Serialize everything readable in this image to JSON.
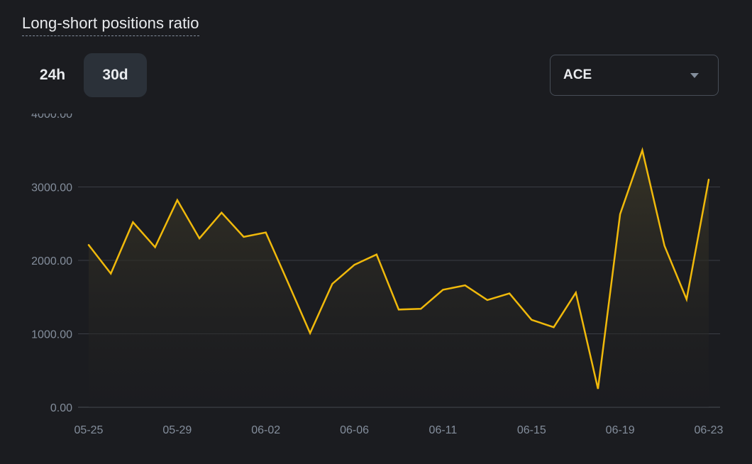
{
  "header": {
    "title": "Long-short positions ratio"
  },
  "range_tabs": [
    {
      "label": "24h",
      "selected": false
    },
    {
      "label": "30d",
      "selected": true
    }
  ],
  "symbol_select": {
    "value": "ACE"
  },
  "colors": {
    "line": "#f0b90b",
    "background": "#1b1c20",
    "grid": "#3a3d44",
    "axis_text": "#848e9c",
    "selected_tab_bg": "#2b3139"
  },
  "chart_data": {
    "type": "area",
    "title": "Long-short positions ratio",
    "xlabel": "",
    "ylabel": "",
    "ylim": [
      0,
      4000
    ],
    "yticks": [
      0,
      1000,
      2000,
      3000,
      4000
    ],
    "ytick_labels": [
      "0.00",
      "1000.00",
      "2000.00",
      "3000.00",
      "4000.00"
    ],
    "x_tick_labels": [
      "05-25",
      "05-29",
      "06-02",
      "06-06",
      "06-11",
      "06-15",
      "06-19",
      "06-23"
    ],
    "x_tick_indices": [
      0,
      4,
      8,
      12,
      16,
      20,
      24,
      28
    ],
    "grid": true,
    "series": [
      {
        "values": [
          2210,
          1820,
          2520,
          2180,
          2820,
          2300,
          2650,
          2320,
          2380,
          1700,
          1010,
          1680,
          1940,
          2080,
          1330,
          1340,
          1600,
          1660,
          1460,
          1550,
          1190,
          1090,
          1560,
          250,
          2630,
          3500,
          2200,
          1470,
          3100
        ]
      }
    ]
  }
}
